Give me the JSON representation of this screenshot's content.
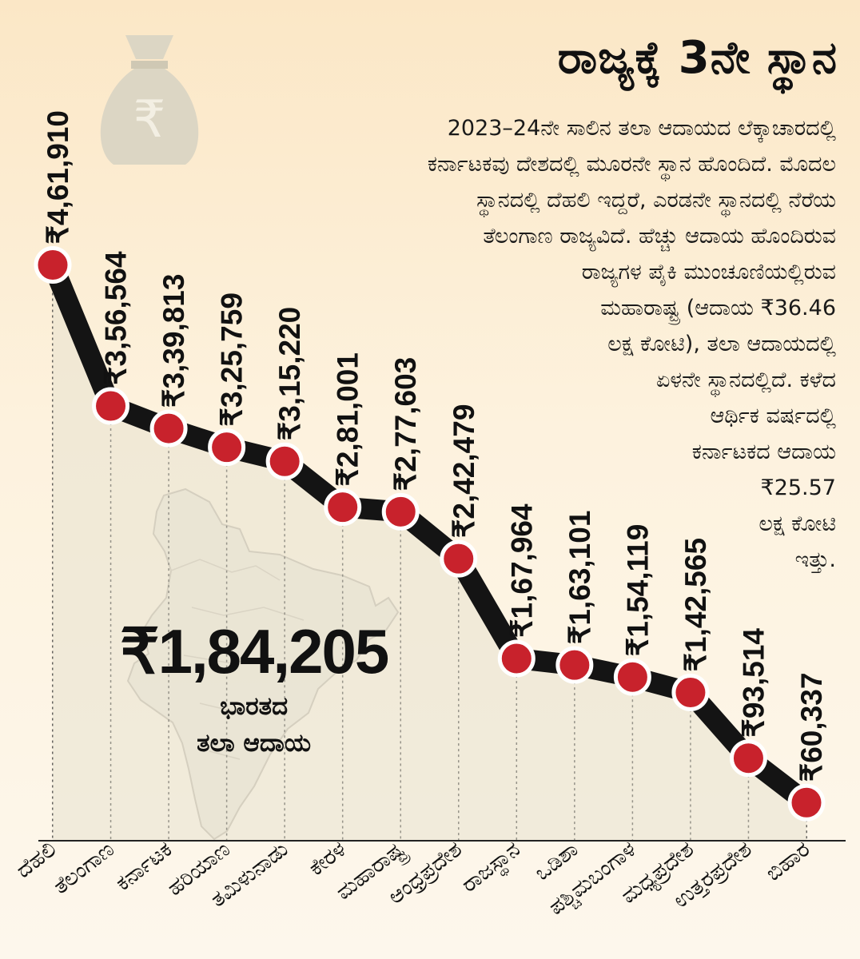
{
  "title": "ರಾಜ್ಯಕ್ಕೆ 3ನೇ ಸ್ಥಾನ",
  "description_lines": [
    "2023–24ನೇ ಸಾಲಿನ ತಲಾ ಆದಾಯದ ಲೆಕ್ಕಾಚಾರದಲ್ಲಿ",
    "ಕರ್ನಾಟಕವು ದೇಶದಲ್ಲಿ ಮೂರನೇ ಸ್ಥಾನ ಹೊಂದಿದೆ. ಮೊದಲ",
    "ಸ್ಥಾನದಲ್ಲಿ ದೆಹಲಿ ಇದ್ದರೆ, ಎರಡನೇ ಸ್ಥಾನದಲ್ಲಿ ನೆರೆಯ",
    "ತೆಲಂಗಾಣ ರಾಜ್ಯವಿದೆ. ಹೆಚ್ಚು ಆದಾಯ ಹೊಂದಿರುವ",
    "ರಾಜ್ಯಗಳ ಪೈಕಿ ಮುಂಚೂಣಿಯಲ್ಲಿರುವ",
    "ಮಹಾರಾಷ್ಟ್ರ (ಆದಾಯ ₹36.46",
    "ಲಕ್ಷ ಕೋಟಿ), ತಲಾ ಆದಾಯದಲ್ಲಿ",
    "ಏಳನೇ ಸ್ಥಾನದಲ್ಲಿದೆ. ಕಳೆದ",
    "ಆರ್ಥಿಕ ವರ್ಷದಲ್ಲಿ",
    "ಕರ್ನಾಟಕದ ಆದಾಯ",
    "₹25.57",
    "ಲಕ್ಷ ಕೋಟಿ",
    "ಇತ್ತು."
  ],
  "national_average": {
    "value": "₹1,84,205",
    "label_line1": "ಭಾರತದ",
    "label_line2": "ತಲಾ ಆದಾಯ"
  },
  "colors": {
    "line": "#141414",
    "marker": "#c8222c",
    "marker_ring": "#ffffff",
    "background": "#fbe7c6",
    "area": "#e8e2d0"
  },
  "icons": [
    "money-bag-icon",
    "rupee-icon",
    "india-map-icon"
  ],
  "chart_data": {
    "type": "line",
    "categories": [
      "ದೆಹಲಿ",
      "ತೆಲಂಗಾಣ",
      "ಕರ್ನಾಟಕ",
      "ಹರಿಯಾಣ",
      "ತಮಿಳುನಾಡು",
      "ಕೇರಳ",
      "ಮಹಾರಾಷ್ಟ್ರ",
      "ಆಂಧ್ರಪ್ರದೇಶ",
      "ರಾಜಸ್ಥಾನ",
      "ಒಡಿಶಾ",
      "ಪಶ್ಚಿಮಬಂಗಾಳ",
      "ಮಧ್ಯಪ್ರದೇಶ",
      "ಉತ್ತರಪ್ರದೇಶ",
      "ಬಿಹಾರ"
    ],
    "values": [
      461910,
      356564,
      339813,
      325759,
      315220,
      281001,
      277603,
      242479,
      167964,
      163101,
      154119,
      142565,
      93514,
      60337
    ],
    "value_labels": [
      "₹4,61,910",
      "₹3,56,564",
      "₹3,39,813",
      "₹3,25,759",
      "₹3,15,220",
      "₹2,81,001",
      "₹2,77,603",
      "₹2,42,479",
      "₹1,67,964",
      "₹1,63,101",
      "₹1,54,119",
      "₹1,42,565",
      "₹93,514",
      "₹60,337"
    ],
    "title": "ರಾಜ್ಯಕ್ಕೆ 3ನೇ ಸ್ಥಾನ",
    "xlabel": "",
    "ylabel": "",
    "ylim": [
      45000,
      470000
    ],
    "grid": "vertical-dotted",
    "legend": "none"
  }
}
